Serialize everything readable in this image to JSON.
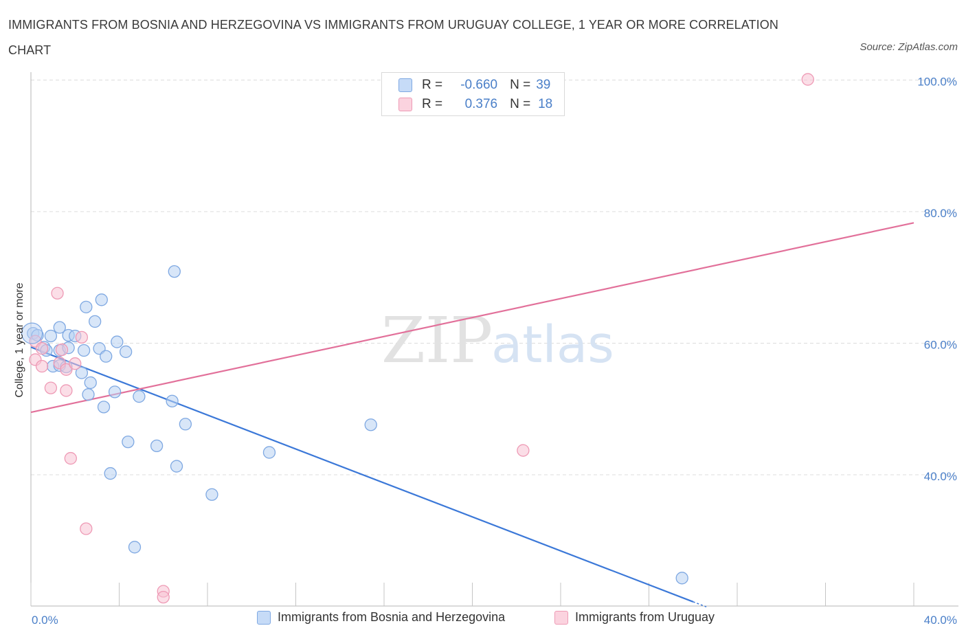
{
  "title": "IMMIGRANTS FROM BOSNIA AND HERZEGOVINA VS IMMIGRANTS FROM URUGUAY COLLEGE, 1 YEAR OR MORE CORRELATION CHART",
  "source": "Source: ZipAtlas.com",
  "watermark": {
    "zip": "ZIP",
    "atlas": "atlas"
  },
  "legend_box": {
    "rows": [
      {
        "r_label": "R =",
        "r_value": "-0.660",
        "n_label": "N =",
        "n_value": "39",
        "color": "#8ab4f0"
      },
      {
        "r_label": "R =",
        "r_value": "0.376",
        "n_label": "N =",
        "n_value": "18",
        "color": "#f4a6bd"
      }
    ]
  },
  "colors": {
    "blue_fill": "#b8d1f3",
    "blue_stroke": "#7ea8e2",
    "blue_line": "#3b78d8",
    "pink_fill": "#f7c3d3",
    "pink_stroke": "#ee9ab5",
    "pink_line": "#e2709a",
    "tick_text": "#4a7fc8",
    "grid": "#dcdcdc"
  },
  "chart_data": {
    "type": "scatter",
    "title": "IMMIGRANTS FROM BOSNIA AND HERZEGOVINA VS IMMIGRANTS FROM URUGUAY COLLEGE, 1 YEAR OR MORE CORRELATION CHART",
    "xlabel": "",
    "ylabel": "College, 1 year or more",
    "xlim": [
      0,
      40
    ],
    "ylim": [
      20,
      100
    ],
    "x_tick_labels": [
      "0.0%",
      "40.0%"
    ],
    "y_ticks": [
      40,
      60,
      80,
      100
    ],
    "y_tick_labels": [
      "40.0%",
      "60.0%",
      "80.0%",
      "100.0%"
    ],
    "grid": true,
    "legend_position": "bottom",
    "series": [
      {
        "name": "Immigrants from Bosnia and Herzegovina",
        "color": "#7ea8e2",
        "points": [
          [
            0.1,
            61.5
          ],
          [
            0.3,
            61.2
          ],
          [
            0.6,
            59.4
          ],
          [
            0.9,
            61.1
          ],
          [
            0.7,
            58.9
          ],
          [
            1.0,
            56.5
          ],
          [
            1.3,
            58.9
          ],
          [
            1.3,
            56.6
          ],
          [
            1.6,
            56.4
          ],
          [
            1.3,
            62.4
          ],
          [
            1.7,
            61.2
          ],
          [
            1.7,
            59.3
          ],
          [
            2.0,
            61.1
          ],
          [
            2.3,
            55.5
          ],
          [
            2.4,
            58.9
          ],
          [
            2.5,
            65.5
          ],
          [
            2.7,
            54.0
          ],
          [
            2.6,
            52.2
          ],
          [
            2.9,
            63.3
          ],
          [
            3.1,
            59.2
          ],
          [
            3.2,
            66.6
          ],
          [
            3.4,
            58.0
          ],
          [
            3.3,
            50.3
          ],
          [
            3.9,
            60.2
          ],
          [
            3.8,
            52.6
          ],
          [
            4.3,
            58.7
          ],
          [
            4.4,
            45.0
          ],
          [
            4.9,
            51.9
          ],
          [
            3.6,
            40.2
          ],
          [
            4.7,
            29.0
          ],
          [
            5.7,
            44.4
          ],
          [
            6.4,
            51.2
          ],
          [
            6.5,
            70.9
          ],
          [
            6.6,
            41.3
          ],
          [
            7.0,
            47.7
          ],
          [
            8.2,
            37.0
          ],
          [
            10.8,
            43.4
          ],
          [
            15.4,
            47.6
          ],
          [
            29.5,
            24.3
          ]
        ]
      },
      {
        "name": "Immigrants from Uruguay",
        "color": "#ee9ab5",
        "points": [
          [
            0.2,
            57.5
          ],
          [
            0.2,
            60.3
          ],
          [
            0.5,
            56.5
          ],
          [
            0.5,
            59.2
          ],
          [
            0.9,
            53.2
          ],
          [
            1.3,
            57.0
          ],
          [
            1.4,
            59.0
          ],
          [
            1.2,
            67.6
          ],
          [
            1.6,
            56.0
          ],
          [
            1.6,
            52.8
          ],
          [
            1.8,
            42.5
          ],
          [
            2.0,
            56.9
          ],
          [
            2.3,
            60.9
          ],
          [
            2.5,
            31.8
          ],
          [
            6.0,
            22.3
          ],
          [
            6.0,
            21.4
          ],
          [
            22.3,
            43.7
          ],
          [
            35.2,
            100.1
          ]
        ]
      }
    ],
    "trendlines": [
      {
        "series": "Immigrants from Bosnia and Herzegovina",
        "x": [
          0,
          30
        ],
        "y": [
          59.4,
          20.7
        ]
      },
      {
        "series": "Immigrants from Uruguay",
        "x": [
          0,
          40
        ],
        "y": [
          49.5,
          78.3
        ]
      }
    ]
  }
}
